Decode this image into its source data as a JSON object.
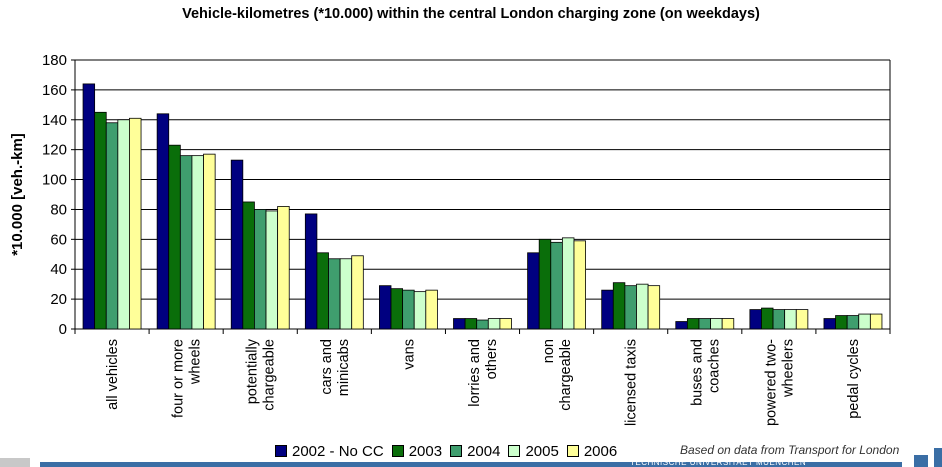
{
  "chart_data": {
    "type": "bar",
    "title": "Vehicle-kilometres (*10.000) within the central London charging zone (on weekdays)",
    "ylabel": "*10.000 [veh.-km]",
    "xlabel": "",
    "ylim": [
      0,
      180
    ],
    "yticks": [
      0,
      20,
      40,
      60,
      80,
      100,
      120,
      140,
      160,
      180
    ],
    "grid": true,
    "legend_position": "bottom",
    "categories": [
      [
        "all vehicles"
      ],
      [
        "four or more",
        "wheels"
      ],
      [
        "potentially",
        "chargeable"
      ],
      [
        "cars and",
        "minicabs"
      ],
      [
        "vans"
      ],
      [
        "lorries and",
        "others"
      ],
      [
        "non",
        "chargeable"
      ],
      [
        "licensed taxis"
      ],
      [
        "buses and",
        "coaches"
      ],
      [
        "powered two-",
        "wheelers"
      ],
      [
        "pedal cycles"
      ]
    ],
    "series": [
      {
        "name": "2002 - No CC",
        "color": "#000080",
        "values": [
          164,
          144,
          113,
          77,
          29,
          7,
          51,
          26,
          5,
          13,
          7
        ]
      },
      {
        "name": "2003",
        "color": "#0a6e0a",
        "values": [
          145,
          123,
          85,
          51,
          27,
          7,
          60,
          31,
          7,
          14,
          9
        ]
      },
      {
        "name": "2004",
        "color": "#3f9e6e",
        "values": [
          138,
          116,
          80,
          47,
          26,
          6,
          58,
          29,
          7,
          13,
          9
        ]
      },
      {
        "name": "2005",
        "color": "#ccffcc",
        "values": [
          140,
          116,
          79,
          47,
          25,
          7,
          61,
          30,
          7,
          13,
          10
        ]
      },
      {
        "name": "2006",
        "color": "#ffff99",
        "values": [
          141,
          117,
          82,
          49,
          26,
          7,
          59,
          29,
          7,
          13,
          10
        ]
      }
    ]
  },
  "source_note": "Based on data from Transport for London",
  "footer_text": "TECHNISCHE UNIVERSITAET MUENCHEN"
}
